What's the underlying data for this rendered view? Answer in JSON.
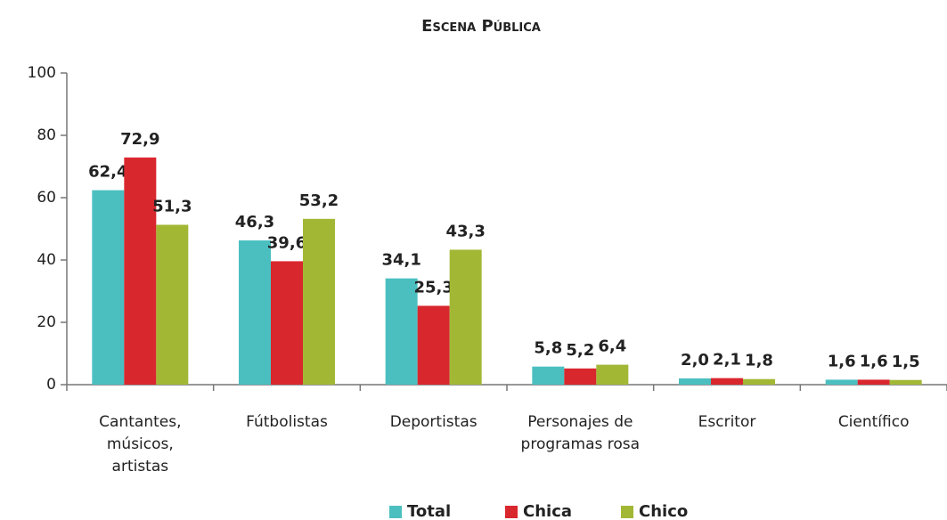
{
  "chart_data": {
    "type": "bar",
    "title": "Escena Pública",
    "categories": [
      "Cantantes, músicos, artistas",
      "Fútbolistas",
      "Deportistas",
      "Personajes de programas rosa",
      "Escritor",
      "Científico"
    ],
    "series": [
      {
        "name": "Total",
        "color": "#4bbfc0",
        "values": [
          62.4,
          46.3,
          34.1,
          5.8,
          2.0,
          1.6
        ],
        "value_labels": [
          "62,4",
          "46,3",
          "34,1",
          "5,8",
          "2,0",
          "1,6"
        ]
      },
      {
        "name": "Chica",
        "color": "#d9272e",
        "values": [
          72.9,
          39.6,
          25.3,
          5.2,
          2.1,
          1.6
        ],
        "value_labels": [
          "72,9",
          "39,6",
          "25,3",
          "5,2",
          "2,1",
          "1,6"
        ]
      },
      {
        "name": "Chico",
        "color": "#a2b835",
        "values": [
          51.3,
          53.2,
          43.3,
          6.4,
          1.8,
          1.5
        ],
        "value_labels": [
          "51,3",
          "53,2",
          "43,3",
          "6,4",
          "1,8",
          "1,5"
        ]
      }
    ],
    "ylim": [
      0,
      100
    ],
    "yticks": [
      0,
      20,
      40,
      60,
      80,
      100
    ],
    "grid": false,
    "legend": "bottom"
  }
}
